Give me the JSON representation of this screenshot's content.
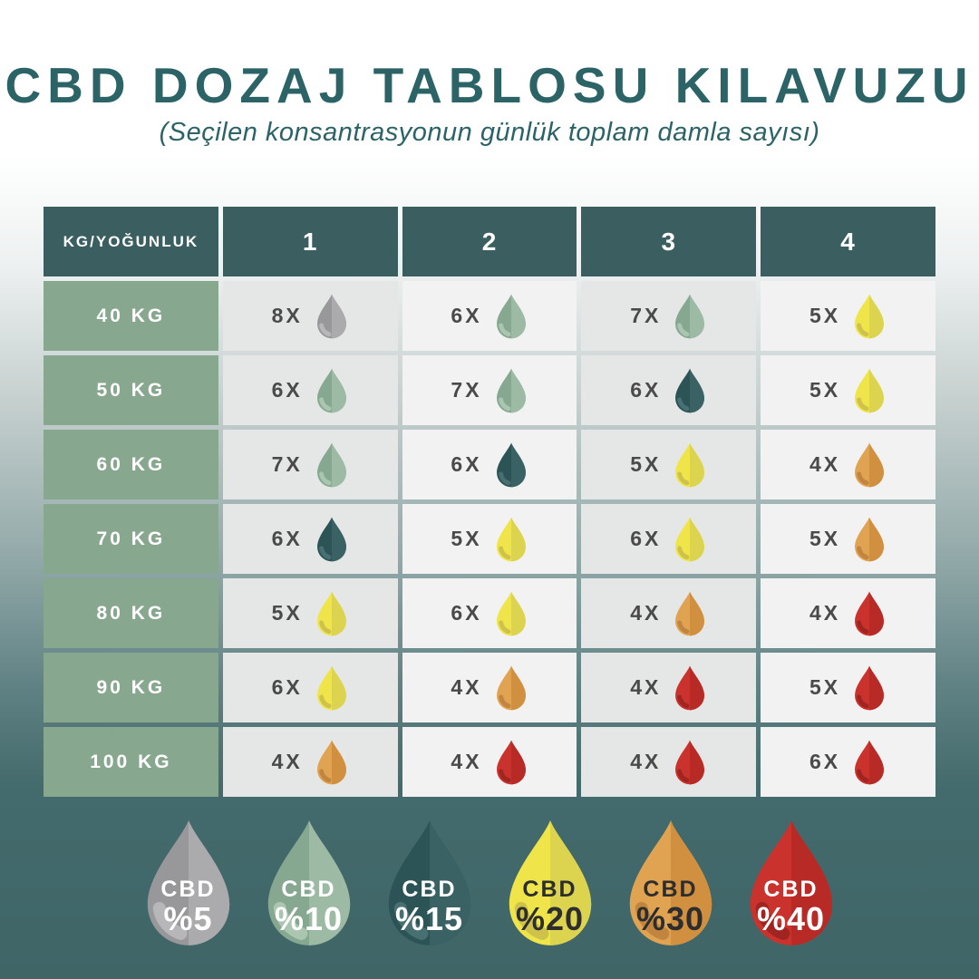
{
  "page": {
    "title": "CBD DOZAJ TABLOSU KILAVUZU",
    "subtitle": "(Seçilen konsantrasyonun günlük toplam damla sayısı)"
  },
  "colors": {
    "title_text": "#2b6367",
    "header_bg": "#3b5f60",
    "row_label_bg": "#87a88e",
    "cell_bg_a": "#e5e7e7",
    "cell_bg_b": "#f1f2f1",
    "cell_text": "#4a4a4a",
    "background_bottom": "#3f6567"
  },
  "drop_palette": {
    "gray": {
      "left": "#98989b",
      "right": "#ababad",
      "swoosh": "#b7b7b9",
      "text": "#ffffff"
    },
    "sage": {
      "left": "#87a890",
      "right": "#9dbba4",
      "swoosh": "#aac6b1",
      "text": "#ffffff"
    },
    "teal": {
      "left": "#2c5355",
      "right": "#3a6163",
      "swoosh": "#486f71",
      "text": "#ffffff"
    },
    "yellow": {
      "left": "#efe54a",
      "right": "#dcd44f",
      "swoosh": "#cfc24a",
      "text": "#2d2d2d"
    },
    "orange": {
      "left": "#e0a351",
      "right": "#d0903f",
      "swoosh": "#c18540",
      "text": "#2d2d2d"
    },
    "red": {
      "left": "#ca322d",
      "right": "#b82a26",
      "swoosh": "#a0241f",
      "text": "#ffffff"
    }
  },
  "table": {
    "corner_label": "KG/YOĞUNLUK",
    "columns": [
      "1",
      "2",
      "3",
      "4"
    ],
    "rows": [
      {
        "label": "40 KG",
        "cells": [
          {
            "count": "8X",
            "color": "gray"
          },
          {
            "count": "6X",
            "color": "sage"
          },
          {
            "count": "7X",
            "color": "sage"
          },
          {
            "count": "5X",
            "color": "yellow"
          }
        ]
      },
      {
        "label": "50 KG",
        "cells": [
          {
            "count": "6X",
            "color": "sage"
          },
          {
            "count": "7X",
            "color": "sage"
          },
          {
            "count": "6X",
            "color": "teal"
          },
          {
            "count": "5X",
            "color": "yellow"
          }
        ]
      },
      {
        "label": "60 KG",
        "cells": [
          {
            "count": "7X",
            "color": "sage"
          },
          {
            "count": "6X",
            "color": "teal"
          },
          {
            "count": "5X",
            "color": "yellow"
          },
          {
            "count": "4X",
            "color": "orange"
          }
        ]
      },
      {
        "label": "70 KG",
        "cells": [
          {
            "count": "6X",
            "color": "teal"
          },
          {
            "count": "5X",
            "color": "yellow"
          },
          {
            "count": "6X",
            "color": "yellow"
          },
          {
            "count": "5X",
            "color": "orange"
          }
        ]
      },
      {
        "label": "80 KG",
        "cells": [
          {
            "count": "5X",
            "color": "yellow"
          },
          {
            "count": "6X",
            "color": "yellow"
          },
          {
            "count": "4X",
            "color": "orange"
          },
          {
            "count": "4X",
            "color": "red"
          }
        ]
      },
      {
        "label": "90 KG",
        "cells": [
          {
            "count": "6X",
            "color": "yellow"
          },
          {
            "count": "4X",
            "color": "orange"
          },
          {
            "count": "4X",
            "color": "red"
          },
          {
            "count": "5X",
            "color": "red"
          }
        ]
      },
      {
        "label": "100 KG",
        "cells": [
          {
            "count": "4X",
            "color": "orange"
          },
          {
            "count": "4X",
            "color": "red"
          },
          {
            "count": "4X",
            "color": "red"
          },
          {
            "count": "6X",
            "color": "red"
          }
        ]
      }
    ]
  },
  "legend": [
    {
      "color": "gray",
      "line1": "CBD",
      "line2": "%5"
    },
    {
      "color": "sage",
      "line1": "CBD",
      "line2": "%10"
    },
    {
      "color": "teal",
      "line1": "CBD",
      "line2": "%15"
    },
    {
      "color": "yellow",
      "line1": "CBD",
      "line2": "%20"
    },
    {
      "color": "orange",
      "line1": "CBD",
      "line2": "%30"
    },
    {
      "color": "red",
      "line1": "CBD",
      "line2": "%40"
    }
  ],
  "chart_data": {
    "type": "table",
    "title": "CBD DOZAJ TABLOSU KILAVUZU",
    "subtitle": "(Seçilen konsantrasyonun günlük toplam damla sayısı)",
    "columns": [
      "KG/YOĞUNLUK",
      "1",
      "2",
      "3",
      "4"
    ],
    "concentration_legend": [
      "CBD %5",
      "CBD %10",
      "CBD %15",
      "CBD %20",
      "CBD %30",
      "CBD %40"
    ],
    "rows": [
      {
        "weight": "40 KG",
        "doses": [
          {
            "drops": 8,
            "concentration": "%5"
          },
          {
            "drops": 6,
            "concentration": "%10"
          },
          {
            "drops": 7,
            "concentration": "%10"
          },
          {
            "drops": 5,
            "concentration": "%20"
          }
        ]
      },
      {
        "weight": "50 KG",
        "doses": [
          {
            "drops": 6,
            "concentration": "%10"
          },
          {
            "drops": 7,
            "concentration": "%10"
          },
          {
            "drops": 6,
            "concentration": "%15"
          },
          {
            "drops": 5,
            "concentration": "%20"
          }
        ]
      },
      {
        "weight": "60 KG",
        "doses": [
          {
            "drops": 7,
            "concentration": "%10"
          },
          {
            "drops": 6,
            "concentration": "%15"
          },
          {
            "drops": 5,
            "concentration": "%20"
          },
          {
            "drops": 4,
            "concentration": "%30"
          }
        ]
      },
      {
        "weight": "70 KG",
        "doses": [
          {
            "drops": 6,
            "concentration": "%15"
          },
          {
            "drops": 5,
            "concentration": "%20"
          },
          {
            "drops": 6,
            "concentration": "%20"
          },
          {
            "drops": 5,
            "concentration": "%30"
          }
        ]
      },
      {
        "weight": "80 KG",
        "doses": [
          {
            "drops": 5,
            "concentration": "%20"
          },
          {
            "drops": 6,
            "concentration": "%20"
          },
          {
            "drops": 4,
            "concentration": "%30"
          },
          {
            "drops": 4,
            "concentration": "%40"
          }
        ]
      },
      {
        "weight": "90 KG",
        "doses": [
          {
            "drops": 6,
            "concentration": "%20"
          },
          {
            "drops": 4,
            "concentration": "%30"
          },
          {
            "drops": 4,
            "concentration": "%40"
          },
          {
            "drops": 5,
            "concentration": "%40"
          }
        ]
      },
      {
        "weight": "100 KG",
        "doses": [
          {
            "drops": 4,
            "concentration": "%30"
          },
          {
            "drops": 4,
            "concentration": "%40"
          },
          {
            "drops": 4,
            "concentration": "%40"
          },
          {
            "drops": 6,
            "concentration": "%40"
          }
        ]
      }
    ]
  }
}
